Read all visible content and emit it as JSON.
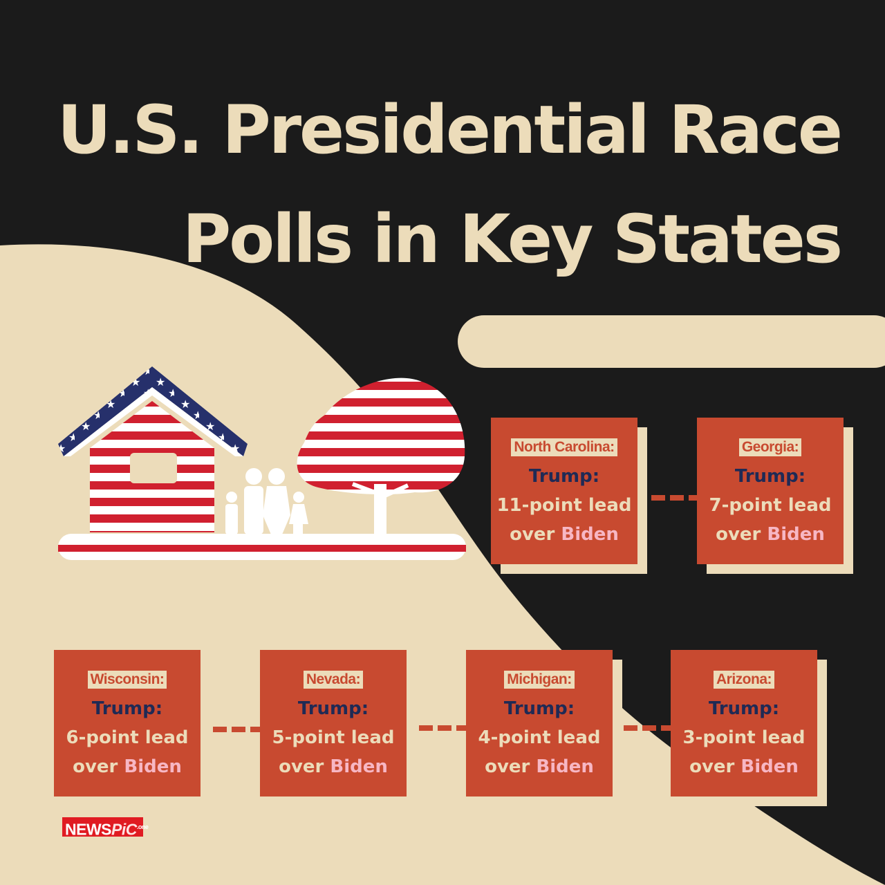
{
  "title": {
    "line1": "U.S. Presidential Race",
    "line2": "Polls in Key States"
  },
  "colors": {
    "background": "#1b1b1b",
    "cream": "#ecdcba",
    "card": "#c84a30",
    "navy": "#1f2a55",
    "pink": "#f7b7c4",
    "flag_red": "#d0202f",
    "flag_blue": "#26306b"
  },
  "cards": [
    {
      "state": "North Carolina:",
      "candidate": "Trump:",
      "lead": "11-point lead",
      "over": "over",
      "opponent": "Biden"
    },
    {
      "state": "Georgia:",
      "candidate": "Trump:",
      "lead": "7-point lead",
      "over": "over",
      "opponent": "Biden"
    },
    {
      "state": "Wisconsin:",
      "candidate": "Trump:",
      "lead": "6-point lead",
      "over": "over",
      "opponent": "Biden"
    },
    {
      "state": "Nevada:",
      "candidate": "Trump:",
      "lead": "5-point lead",
      "over": "over",
      "opponent": "Biden"
    },
    {
      "state": "Michigan:",
      "candidate": "Trump:",
      "lead": "4-point lead",
      "over": "over",
      "opponent": "Biden"
    },
    {
      "state": "Arizona:",
      "candidate": "Trump:",
      "lead": "3-point lead",
      "over": "over",
      "opponent": "Biden"
    }
  ],
  "illustration": {
    "icons": [
      "flag-house-icon",
      "family-icon",
      "flag-tree-icon"
    ]
  },
  "logo": {
    "news": "NEWS",
    "pic": "PiC",
    "suffix": ".one"
  }
}
